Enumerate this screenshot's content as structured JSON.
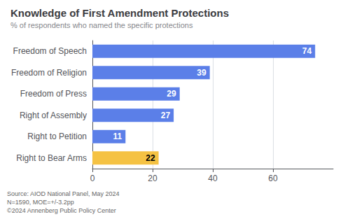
{
  "chart_data": {
    "type": "bar",
    "orientation": "horizontal",
    "title": "Knowledge of First Amendment Protections",
    "subtitle": "% of respondents who named the specific protections",
    "categories": [
      "Freedom of Speech",
      "Freedom of Religion",
      "Freedom of Press",
      "Right of Assembly",
      "Right to Petition",
      "Right to Bear Arms"
    ],
    "values": [
      74,
      39,
      29,
      27,
      11,
      22
    ],
    "colors": [
      "#5b7fe8",
      "#5b7fe8",
      "#5b7fe8",
      "#5b7fe8",
      "#5b7fe8",
      "#f5c243"
    ],
    "xlim": [
      0,
      80
    ],
    "xticks": [
      0,
      20,
      40,
      60
    ],
    "grid": true,
    "data_labels": true,
    "annotations": [
      "Source: AIOD National Panel, May 2024\nN=1590, MOE=+/-3.2pp\n©2024 Annenberg Public Policy Center"
    ]
  }
}
